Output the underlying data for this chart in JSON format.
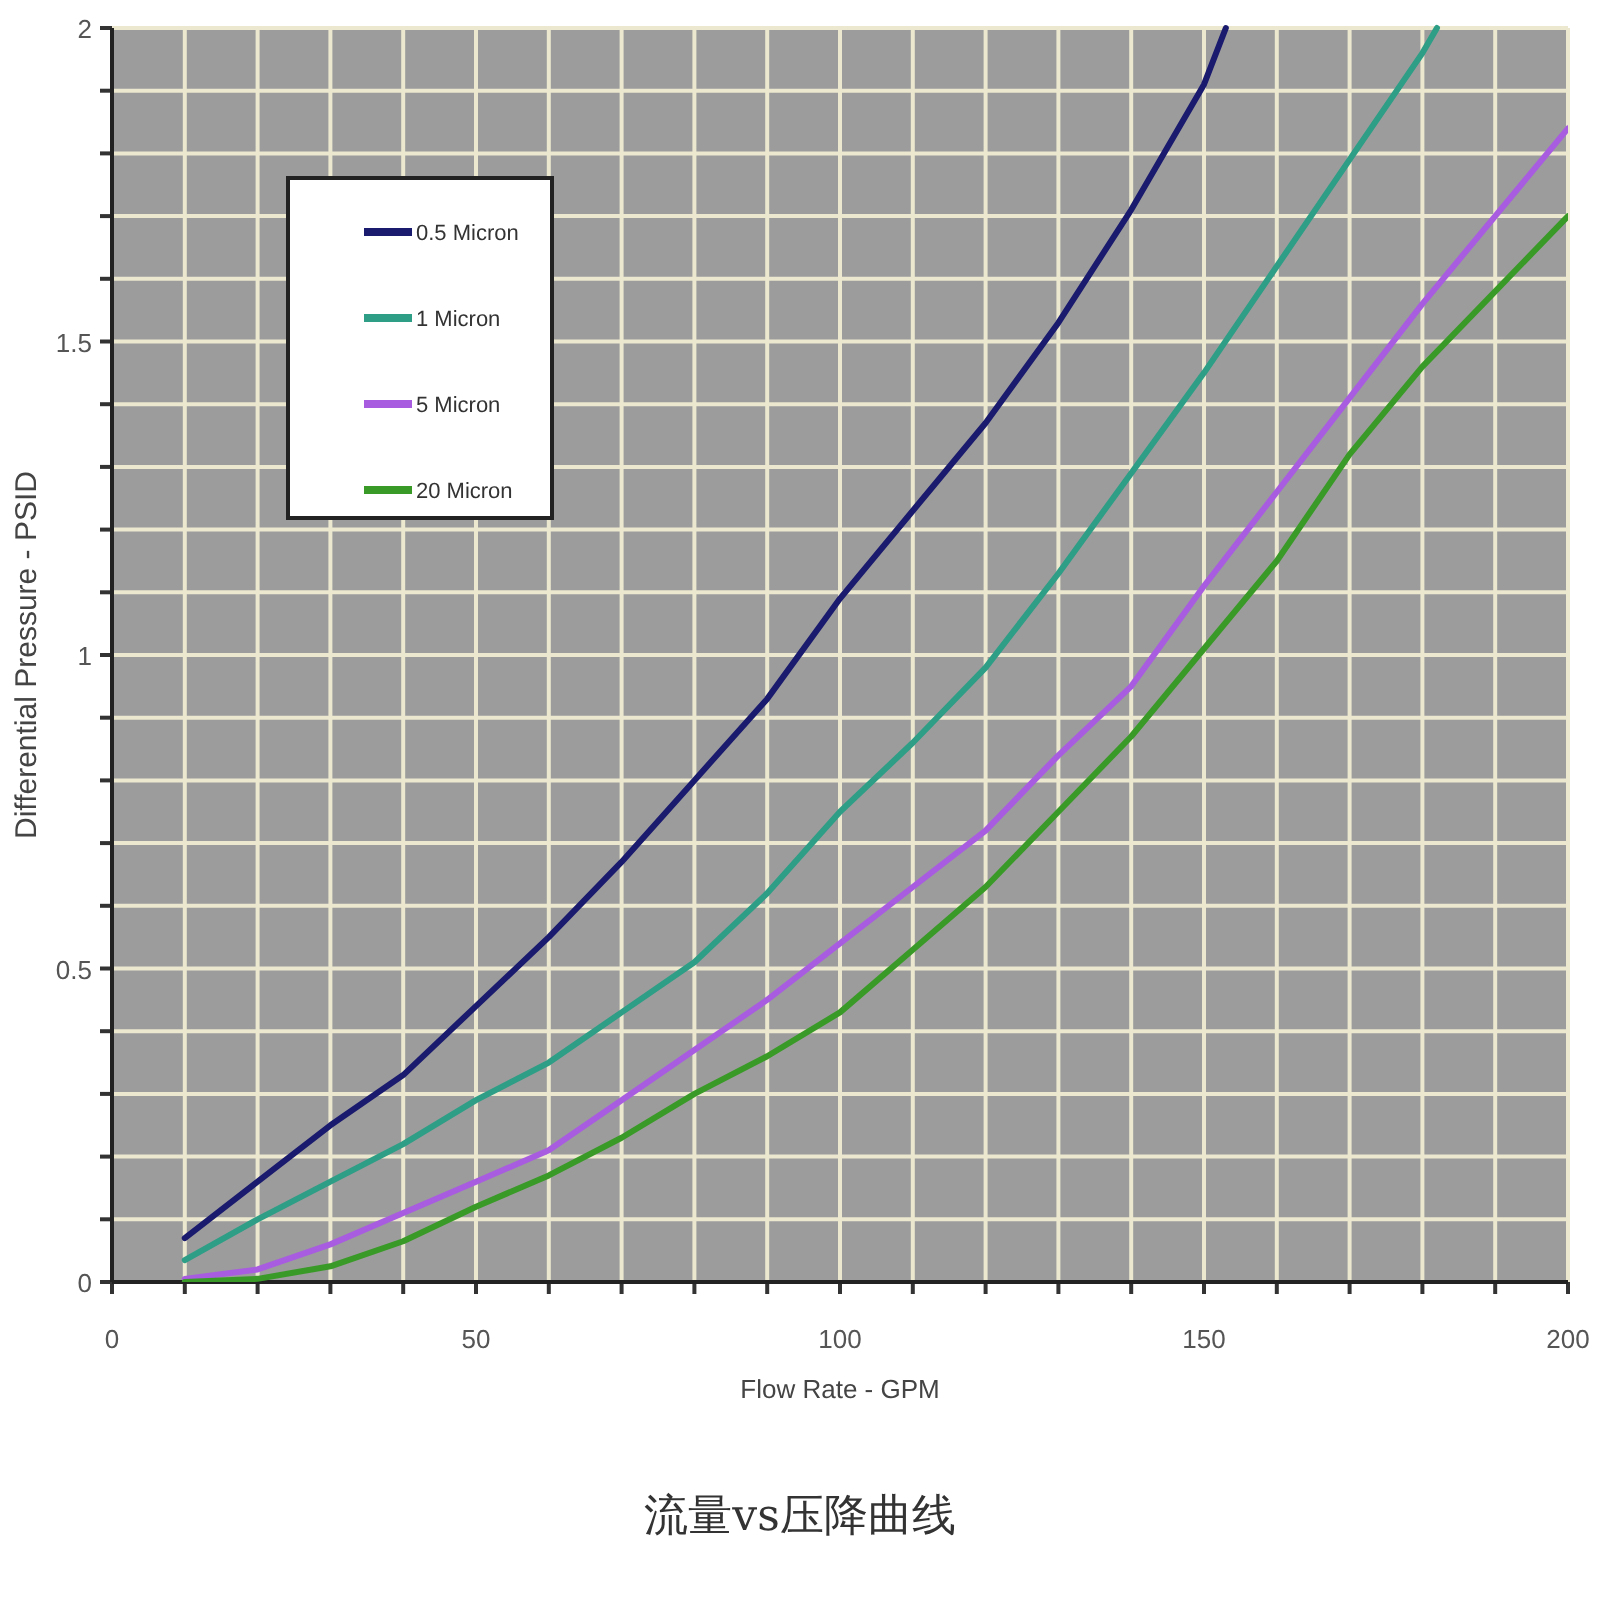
{
  "chart_data": {
    "type": "line",
    "title": "流量vs压降曲线",
    "xlabel": "Flow Rate - GPM",
    "ylabel": "Differential Pressure - PSID",
    "xlim": [
      0,
      200
    ],
    "ylim": [
      0,
      2
    ],
    "xticks": [
      0,
      {
        "value": 10,
        "label": null
      },
      {
        "value": 20,
        "label": null
      },
      {
        "value": 30,
        "label": null
      },
      {
        "value": 40,
        "label": null
      },
      50,
      {
        "value": 60,
        "label": null
      },
      {
        "value": 70,
        "label": null
      },
      {
        "value": 80,
        "label": null
      },
      {
        "value": 90,
        "label": null
      },
      100,
      {
        "value": 110,
        "label": null
      },
      {
        "value": 120,
        "label": null
      },
      {
        "value": 130,
        "label": null
      },
      {
        "value": 140,
        "label": null
      },
      150,
      {
        "value": 160,
        "label": null
      },
      {
        "value": 170,
        "label": null
      },
      {
        "value": 180,
        "label": null
      },
      {
        "value": 190,
        "label": null
      },
      200
    ],
    "yticks": [
      0,
      {
        "value": 0.1,
        "label": null
      },
      {
        "value": 0.2,
        "label": null
      },
      {
        "value": 0.3,
        "label": null
      },
      {
        "value": 0.4,
        "label": null
      },
      0.5,
      {
        "value": 0.6,
        "label": null
      },
      {
        "value": 0.7,
        "label": null
      },
      {
        "value": 0.8,
        "label": null
      },
      {
        "value": 0.9,
        "label": null
      },
      1,
      {
        "value": 1.1,
        "label": null
      },
      {
        "value": 1.2,
        "label": null
      },
      {
        "value": 1.3,
        "label": null
      },
      {
        "value": 1.4,
        "label": null
      },
      1.5,
      {
        "value": 1.6,
        "label": null
      },
      {
        "value": 1.7,
        "label": null
      },
      {
        "value": 1.8,
        "label": null
      },
      {
        "value": 1.9,
        "label": null
      },
      2
    ],
    "grid": true,
    "legend": "top left",
    "series": [
      {
        "name": "0.5 Micron",
        "color": "#1a1a6e",
        "x": [
          10,
          20,
          30,
          40,
          50,
          60,
          70,
          80,
          90,
          100,
          110,
          120,
          130,
          140,
          150,
          153
        ],
        "values": [
          0.07,
          0.16,
          0.25,
          0.33,
          0.44,
          0.55,
          0.67,
          0.8,
          0.93,
          1.09,
          1.23,
          1.37,
          1.53,
          1.71,
          1.91,
          2.0
        ]
      },
      {
        "name": "1 Micron",
        "color": "#2e9e86",
        "x": [
          10,
          20,
          30,
          40,
          50,
          60,
          70,
          80,
          90,
          100,
          110,
          120,
          130,
          140,
          150,
          160,
          170,
          180,
          182
        ],
        "values": [
          0.035,
          0.1,
          0.16,
          0.22,
          0.29,
          0.35,
          0.43,
          0.51,
          0.62,
          0.75,
          0.86,
          0.98,
          1.13,
          1.29,
          1.45,
          1.62,
          1.79,
          1.96,
          2.0
        ]
      },
      {
        "name": "5 Micron",
        "color": "#a85ce0",
        "x": [
          10,
          20,
          30,
          40,
          50,
          60,
          70,
          80,
          90,
          100,
          110,
          120,
          130,
          140,
          150,
          160,
          170,
          180,
          190,
          200
        ],
        "values": [
          0.005,
          0.02,
          0.06,
          0.11,
          0.16,
          0.21,
          0.29,
          0.37,
          0.45,
          0.54,
          0.63,
          0.72,
          0.84,
          0.95,
          1.11,
          1.26,
          1.41,
          1.56,
          1.7,
          1.84
        ]
      },
      {
        "name": "20 Micron",
        "color": "#3a9a28",
        "x": [
          10,
          20,
          30,
          40,
          50,
          60,
          70,
          80,
          90,
          100,
          110,
          120,
          130,
          140,
          150,
          160,
          170,
          180,
          190,
          200
        ],
        "values": [
          0.0,
          0.005,
          0.025,
          0.065,
          0.12,
          0.17,
          0.23,
          0.3,
          0.36,
          0.43,
          0.53,
          0.63,
          0.75,
          0.87,
          1.01,
          1.15,
          1.32,
          1.46,
          1.58,
          1.7
        ]
      }
    ]
  }
}
